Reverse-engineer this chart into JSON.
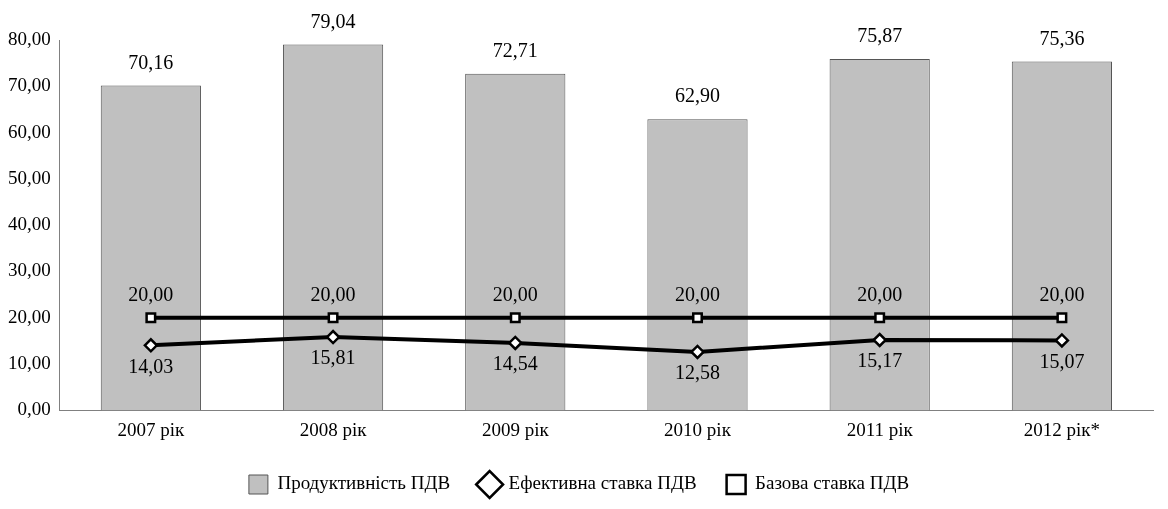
{
  "chart_data": {
    "type": "bar",
    "categories": [
      "2007 рік",
      "2008 рік",
      "2009 рік",
      "2010 рік",
      "2011 рік",
      "2012 рік*"
    ],
    "series": [
      {
        "name": "Продуктивність ПДВ",
        "color": "#c0c0c0",
        "values": [
          70.16,
          79.04,
          72.71,
          62.9,
          75.87,
          75.36
        ],
        "value_labels": [
          "70,16",
          "79,04",
          "72,71",
          "62,90",
          "75,87",
          "75,36"
        ]
      },
      {
        "name": "Ефективна ставка ПДВ",
        "type": "line",
        "color": "#000000",
        "marker": "diamond",
        "values": [
          14.03,
          15.81,
          14.54,
          12.58,
          15.17,
          15.07
        ],
        "value_labels": [
          "14,03",
          "15,81",
          "14,54",
          "12,58",
          "15,17",
          "15,07"
        ]
      },
      {
        "name": "Базова ставка ПДВ",
        "type": "line",
        "color": "#000000",
        "marker": "square",
        "values": [
          20.0,
          20.0,
          20.0,
          20.0,
          20.0,
          20.0
        ],
        "value_labels": [
          "20,00",
          "20,00",
          "20,00",
          "20,00",
          "20,00",
          "20,00"
        ]
      }
    ],
    "ylim": [
      0,
      80
    ],
    "yticks": [
      {
        "value": 0,
        "label": "0,00"
      },
      {
        "value": 10,
        "label": "10,00"
      },
      {
        "value": 20,
        "label": "20,00"
      },
      {
        "value": 30,
        "label": "30,00"
      },
      {
        "value": 40,
        "label": "40,00"
      },
      {
        "value": 50,
        "label": "50,00"
      },
      {
        "value": 60,
        "label": "60,00"
      },
      {
        "value": 70,
        "label": "70,00"
      },
      {
        "value": 80,
        "label": "80,00"
      }
    ],
    "grid": false,
    "legend": "bottom"
  }
}
